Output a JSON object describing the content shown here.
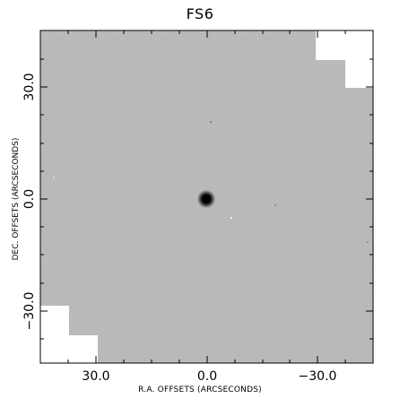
{
  "figure": {
    "title": "FS6",
    "xlabel": "R.A. OFFSETS (ARCSECONDS)",
    "ylabel": "DEC. OFFSETS (ARCSECONDS)"
  },
  "x_ticks": [
    "30.0",
    "0.0",
    "−30.0"
  ],
  "y_ticks": [
    "30.0",
    "0.0",
    "−30.0"
  ],
  "colors": {
    "field": "#b9b9b9",
    "blank": "#ffffff",
    "star": "#000000"
  }
}
